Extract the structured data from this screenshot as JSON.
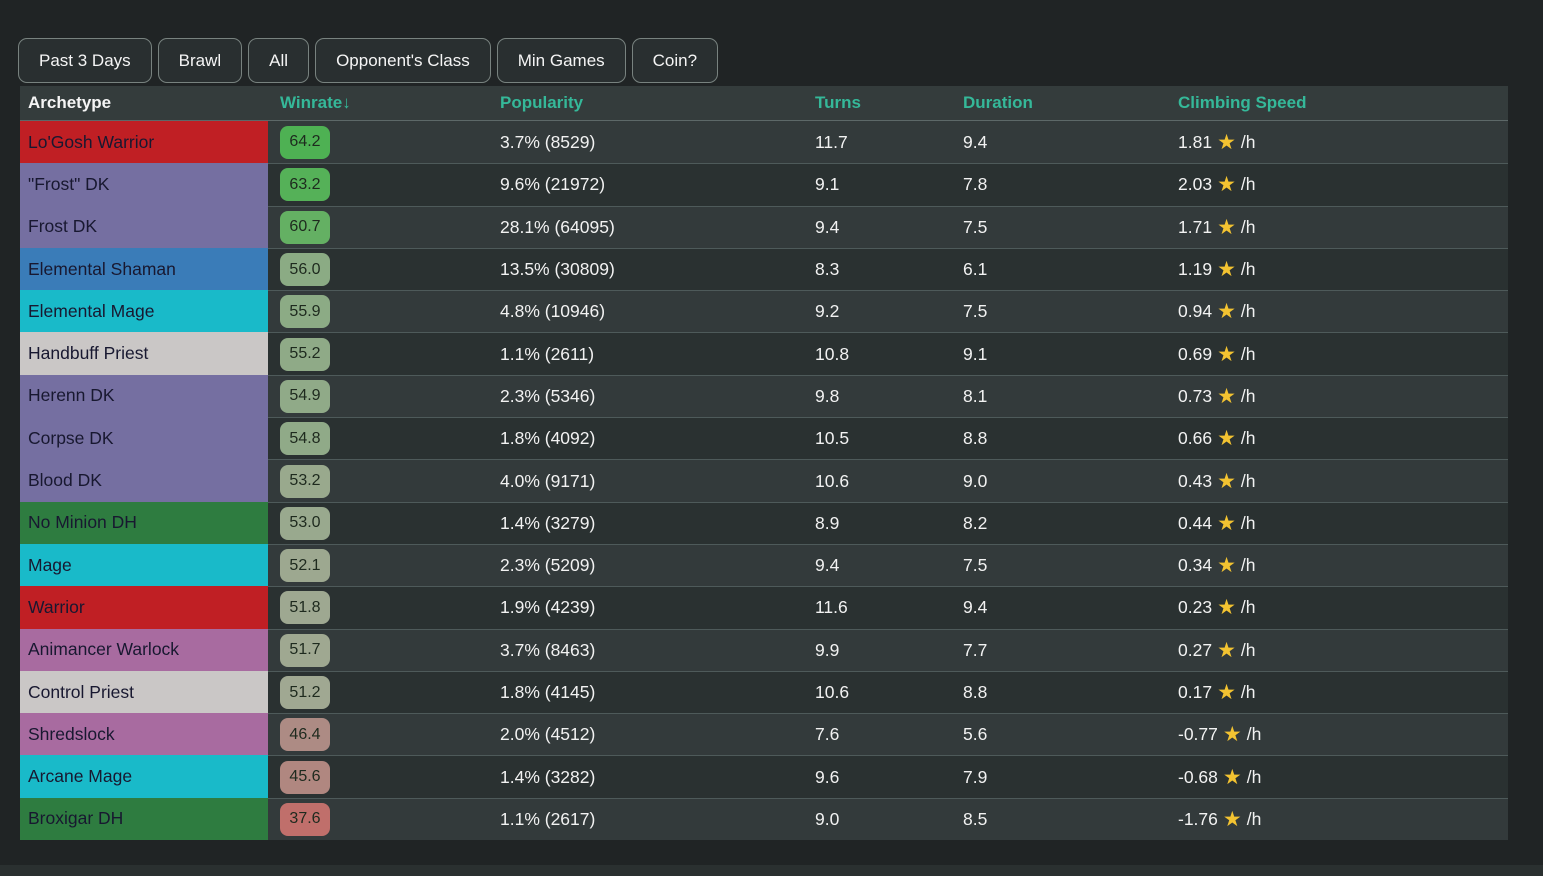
{
  "filters": [
    {
      "label": "Past 3 Days"
    },
    {
      "label": "Brawl"
    },
    {
      "label": "All"
    },
    {
      "label": "Opponent's Class"
    },
    {
      "label": "Min Games"
    },
    {
      "label": "Coin?"
    }
  ],
  "table": {
    "headers": {
      "archetype": "Archetype",
      "winrate": "Winrate",
      "sort_arrow": "↓",
      "popularity": "Popularity",
      "turns": "Turns",
      "duration": "Duration",
      "climbing_speed": "Climbing Speed"
    },
    "climbing_unit": "/h",
    "star_icon_color": "#f3c331",
    "rows": [
      {
        "archetype": "Lo'Gosh Warrior",
        "class_color": "#c01f24",
        "winrate": "64.2",
        "winrate_color": "#4eb153",
        "popularity": "3.7% (8529)",
        "turns": "11.7",
        "duration": "9.4",
        "climbing_value": "1.81"
      },
      {
        "archetype": "\"Frost\" DK",
        "class_color": "#756fa1",
        "winrate": "63.2",
        "winrate_color": "#55b158",
        "popularity": "9.6% (21972)",
        "turns": "9.1",
        "duration": "7.8",
        "climbing_value": "2.03"
      },
      {
        "archetype": "Frost DK",
        "class_color": "#756fa1",
        "winrate": "60.7",
        "winrate_color": "#64b063",
        "popularity": "28.1% (64095)",
        "turns": "9.4",
        "duration": "7.5",
        "climbing_value": "1.71"
      },
      {
        "archetype": "Elemental Shaman",
        "class_color": "#3a7cb8",
        "winrate": "56.0",
        "winrate_color": "#8bab84",
        "popularity": "13.5% (30809)",
        "turns": "8.3",
        "duration": "6.1",
        "climbing_value": "1.19"
      },
      {
        "archetype": "Elemental Mage",
        "class_color": "#19bac9",
        "winrate": "55.9",
        "winrate_color": "#8cab85",
        "popularity": "4.8% (10946)",
        "turns": "9.2",
        "duration": "7.5",
        "climbing_value": "0.94"
      },
      {
        "archetype": "Handbuff Priest",
        "class_color": "#cac7c6",
        "winrate": "55.2",
        "winrate_color": "#8faa87",
        "popularity": "1.1% (2611)",
        "turns": "10.8",
        "duration": "9.1",
        "climbing_value": "0.69"
      },
      {
        "archetype": "Herenn DK",
        "class_color": "#756fa1",
        "winrate": "54.9",
        "winrate_color": "#90aa88",
        "popularity": "2.3% (5346)",
        "turns": "9.8",
        "duration": "8.1",
        "climbing_value": "0.73"
      },
      {
        "archetype": "Corpse DK",
        "class_color": "#756fa1",
        "winrate": "54.8",
        "winrate_color": "#90aa88",
        "popularity": "1.8% (4092)",
        "turns": "10.5",
        "duration": "8.8",
        "climbing_value": "0.66"
      },
      {
        "archetype": "Blood DK",
        "class_color": "#756fa1",
        "winrate": "53.2",
        "winrate_color": "#99a98d",
        "popularity": "4.0% (9171)",
        "turns": "10.6",
        "duration": "9.0",
        "climbing_value": "0.43"
      },
      {
        "archetype": "No Minion DH",
        "class_color": "#2e7c40",
        "winrate": "53.0",
        "winrate_color": "#99a98e",
        "popularity": "1.4% (3279)",
        "turns": "8.9",
        "duration": "8.2",
        "climbing_value": "0.44"
      },
      {
        "archetype": "Mage",
        "class_color": "#19bac9",
        "winrate": "52.1",
        "winrate_color": "#9da890",
        "popularity": "2.3% (5209)",
        "turns": "9.4",
        "duration": "7.5",
        "climbing_value": "0.34"
      },
      {
        "archetype": "Warrior",
        "class_color": "#c01f24",
        "winrate": "51.8",
        "winrate_color": "#9ea891",
        "popularity": "1.9% (4239)",
        "turns": "11.6",
        "duration": "9.4",
        "climbing_value": "0.23"
      },
      {
        "archetype": "Animancer Warlock",
        "class_color": "#a86ba0",
        "winrate": "51.7",
        "winrate_color": "#9fa891",
        "popularity": "3.7% (8463)",
        "turns": "9.9",
        "duration": "7.7",
        "climbing_value": "0.27"
      },
      {
        "archetype": "Control Priest",
        "class_color": "#cac7c6",
        "winrate": "51.2",
        "winrate_color": "#a0a892",
        "popularity": "1.8% (4145)",
        "turns": "10.6",
        "duration": "8.8",
        "climbing_value": "0.17"
      },
      {
        "archetype": "Shredslock",
        "class_color": "#a86ba0",
        "winrate": "46.4",
        "winrate_color": "#ad8b84",
        "popularity": "2.0% (4512)",
        "turns": "7.6",
        "duration": "5.6",
        "climbing_value": "-0.77"
      },
      {
        "archetype": "Arcane Mage",
        "class_color": "#19bac9",
        "winrate": "45.6",
        "winrate_color": "#b08780",
        "popularity": "1.4% (3282)",
        "turns": "9.6",
        "duration": "7.9",
        "climbing_value": "-0.68"
      },
      {
        "archetype": "Broxigar DH",
        "class_color": "#2e7c40",
        "winrate": "37.6",
        "winrate_color": "#c06f6b",
        "popularity": "1.1% (2617)",
        "turns": "9.0",
        "duration": "8.5",
        "climbing_value": "-1.76"
      }
    ]
  },
  "colors": {
    "page_background": "#202425",
    "header_accent": "#35b899",
    "row_odd": "#333a3b",
    "row_even": "#2a3131"
  }
}
